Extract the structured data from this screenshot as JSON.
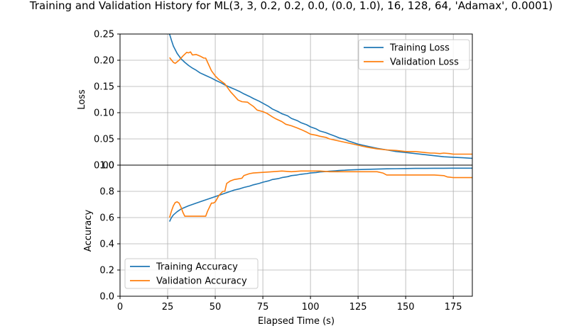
{
  "chart_data": [
    {
      "type": "line",
      "title": "Training and Validation History for ML(3, 3, 0.2, 0.2, 0.0, (0.0, 1.0), 16, 128, 64, 'Adamax', 0.0001)",
      "xlabel": "",
      "ylabel": "Loss",
      "xlim": [
        0,
        185
      ],
      "ylim": [
        0,
        0.25
      ],
      "yticks": [
        "0.00",
        "0.05",
        "0.10",
        "0.15",
        "0.20",
        "0.25"
      ],
      "xticks": [],
      "grid": true,
      "legend_position": "top-right",
      "series": [
        {
          "name": "Training Loss",
          "color": "#1f77b4",
          "x": [
            26,
            27,
            28,
            30,
            32,
            34,
            36,
            38,
            40,
            42,
            45,
            48,
            50,
            53,
            55,
            58,
            60,
            63,
            65,
            68,
            70,
            73,
            75,
            78,
            80,
            83,
            85,
            88,
            90,
            93,
            95,
            98,
            100,
            103,
            105,
            108,
            110,
            113,
            115,
            118,
            120,
            125,
            130,
            135,
            140,
            145,
            150,
            155,
            160,
            165,
            170,
            175,
            180,
            185
          ],
          "y": [
            0.25,
            0.238,
            0.227,
            0.213,
            0.203,
            0.196,
            0.19,
            0.185,
            0.181,
            0.176,
            0.171,
            0.166,
            0.162,
            0.157,
            0.153,
            0.148,
            0.145,
            0.14,
            0.136,
            0.131,
            0.127,
            0.122,
            0.118,
            0.112,
            0.107,
            0.102,
            0.098,
            0.094,
            0.089,
            0.085,
            0.081,
            0.077,
            0.073,
            0.069,
            0.065,
            0.062,
            0.059,
            0.055,
            0.052,
            0.049,
            0.046,
            0.04,
            0.036,
            0.032,
            0.029,
            0.026,
            0.024,
            0.022,
            0.02,
            0.018,
            0.016,
            0.015,
            0.014,
            0.013
          ]
        },
        {
          "name": "Validation Loss",
          "color": "#ff7f0e",
          "x": [
            26,
            28,
            29,
            31,
            33,
            35,
            36,
            37,
            38,
            40,
            42,
            44,
            45,
            46,
            48,
            50,
            52,
            55,
            58,
            60,
            62,
            64,
            67,
            68,
            70,
            72,
            75,
            77,
            80,
            82,
            85,
            87,
            90,
            93,
            95,
            98,
            100,
            103,
            105,
            108,
            110,
            115,
            120,
            125,
            130,
            135,
            140,
            145,
            150,
            155,
            160,
            163,
            165,
            168,
            170,
            173,
            175,
            180,
            185
          ],
          "y": [
            0.205,
            0.196,
            0.194,
            0.2,
            0.208,
            0.215,
            0.214,
            0.216,
            0.21,
            0.211,
            0.208,
            0.204,
            0.204,
            0.196,
            0.18,
            0.17,
            0.163,
            0.155,
            0.14,
            0.132,
            0.124,
            0.121,
            0.12,
            0.117,
            0.112,
            0.105,
            0.102,
            0.099,
            0.092,
            0.088,
            0.083,
            0.078,
            0.075,
            0.071,
            0.068,
            0.063,
            0.059,
            0.057,
            0.055,
            0.053,
            0.05,
            0.046,
            0.042,
            0.038,
            0.034,
            0.031,
            0.029,
            0.028,
            0.026,
            0.026,
            0.024,
            0.023,
            0.023,
            0.022,
            0.023,
            0.022,
            0.021,
            0.021,
            0.021
          ]
        }
      ]
    },
    {
      "type": "line",
      "title": "",
      "xlabel": "Elapsed Time (s)",
      "ylabel": "Accuracy",
      "xlim": [
        0,
        185
      ],
      "ylim": [
        0,
        1.0
      ],
      "yticks": [
        "0.0",
        "0.2",
        "0.4",
        "0.6",
        "0.8",
        "1.0"
      ],
      "xticks": [
        "0",
        "25",
        "50",
        "75",
        "100",
        "125",
        "150",
        "175"
      ],
      "grid": true,
      "legend_position": "bottom-left",
      "series": [
        {
          "name": "Training Accuracy",
          "color": "#1f77b4",
          "x": [
            26,
            27,
            28,
            30,
            32,
            34,
            36,
            38,
            40,
            42,
            45,
            48,
            50,
            53,
            55,
            58,
            60,
            63,
            65,
            68,
            70,
            73,
            75,
            78,
            80,
            83,
            85,
            88,
            90,
            93,
            95,
            98,
            100,
            103,
            105,
            108,
            110,
            113,
            115,
            118,
            120,
            125,
            130,
            135,
            140,
            145,
            150,
            155,
            160,
            165,
            170,
            175,
            180,
            185
          ],
          "y": [
            0.57,
            0.6,
            0.62,
            0.645,
            0.665,
            0.678,
            0.69,
            0.7,
            0.71,
            0.72,
            0.735,
            0.75,
            0.76,
            0.775,
            0.785,
            0.8,
            0.81,
            0.82,
            0.83,
            0.84,
            0.85,
            0.86,
            0.87,
            0.88,
            0.89,
            0.897,
            0.905,
            0.912,
            0.92,
            0.925,
            0.93,
            0.935,
            0.94,
            0.944,
            0.948,
            0.951,
            0.954,
            0.957,
            0.959,
            0.961,
            0.963,
            0.966,
            0.968,
            0.97,
            0.972,
            0.973,
            0.974,
            0.975,
            0.975,
            0.976,
            0.976,
            0.977,
            0.977,
            0.977
          ]
        },
        {
          "name": "Validation Accuracy",
          "color": "#ff7f0e",
          "x": [
            26,
            27,
            28,
            29,
            30,
            31,
            32,
            33,
            34,
            35,
            37,
            40,
            43,
            45,
            46,
            48,
            49,
            50,
            52,
            54,
            55,
            56,
            58,
            60,
            62,
            64,
            65,
            68,
            70,
            75,
            80,
            85,
            90,
            95,
            100,
            105,
            110,
            115,
            120,
            125,
            130,
            135,
            138,
            140,
            145,
            150,
            155,
            160,
            165,
            170,
            172,
            175,
            180,
            185
          ],
          "y": [
            0.6,
            0.65,
            0.69,
            0.715,
            0.72,
            0.71,
            0.68,
            0.64,
            0.61,
            0.61,
            0.61,
            0.61,
            0.61,
            0.61,
            0.65,
            0.71,
            0.71,
            0.72,
            0.77,
            0.8,
            0.8,
            0.86,
            0.88,
            0.89,
            0.895,
            0.9,
            0.92,
            0.935,
            0.94,
            0.945,
            0.95,
            0.955,
            0.95,
            0.955,
            0.955,
            0.955,
            0.95,
            0.95,
            0.95,
            0.95,
            0.95,
            0.95,
            0.94,
            0.925,
            0.925,
            0.925,
            0.925,
            0.925,
            0.925,
            0.92,
            0.91,
            0.905,
            0.905,
            0.905
          ]
        }
      ]
    }
  ]
}
